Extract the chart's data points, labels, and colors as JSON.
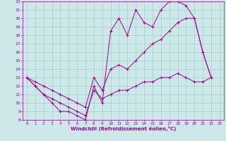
{
  "xlabel": "Windchill (Refroidissement éolien,°C)",
  "xlim": [
    -0.5,
    23.5
  ],
  "ylim": [
    8,
    22
  ],
  "xticks": [
    0,
    1,
    2,
    3,
    4,
    5,
    6,
    7,
    8,
    9,
    10,
    11,
    12,
    13,
    14,
    15,
    16,
    17,
    18,
    19,
    20,
    21,
    22,
    23
  ],
  "yticks": [
    8,
    9,
    10,
    11,
    12,
    13,
    14,
    15,
    16,
    17,
    18,
    19,
    20,
    21,
    22
  ],
  "bg_color": "#cce8e8",
  "line_color": "#990099",
  "grid_color": "#aacccc",
  "line1_x": [
    0,
    1,
    2,
    3,
    4,
    5,
    6,
    7,
    8,
    9,
    10,
    11,
    12,
    13,
    14,
    15,
    16,
    17,
    18,
    19,
    20,
    21,
    22
  ],
  "line1_y": [
    13,
    12,
    11,
    10,
    9,
    9,
    8.5,
    8,
    12,
    10,
    18.5,
    20,
    18,
    21,
    19.5,
    19,
    21,
    22,
    22,
    21.5,
    20,
    16,
    13
  ],
  "line2_x": [
    0,
    1,
    2,
    3,
    4,
    5,
    6,
    7,
    8,
    9,
    10,
    11,
    12,
    13,
    14,
    15,
    16,
    17,
    18,
    19,
    20,
    21,
    22
  ],
  "line2_y": [
    13,
    12.5,
    12,
    11.5,
    11,
    10.5,
    10,
    9.5,
    13,
    11.5,
    14,
    14.5,
    14,
    15,
    16,
    17,
    17.5,
    18.5,
    19.5,
    20,
    20,
    16,
    13
  ],
  "line3_x": [
    0,
    1,
    2,
    3,
    4,
    5,
    6,
    7,
    8,
    9,
    10,
    11,
    12,
    13,
    14,
    15,
    16,
    17,
    18,
    19,
    20,
    21,
    22
  ],
  "line3_y": [
    13,
    12,
    11,
    10.5,
    10,
    9.5,
    9,
    8.5,
    11.5,
    10.5,
    11,
    11.5,
    11.5,
    12,
    12.5,
    12.5,
    13,
    13,
    13.5,
    13,
    12.5,
    12.5,
    13
  ]
}
